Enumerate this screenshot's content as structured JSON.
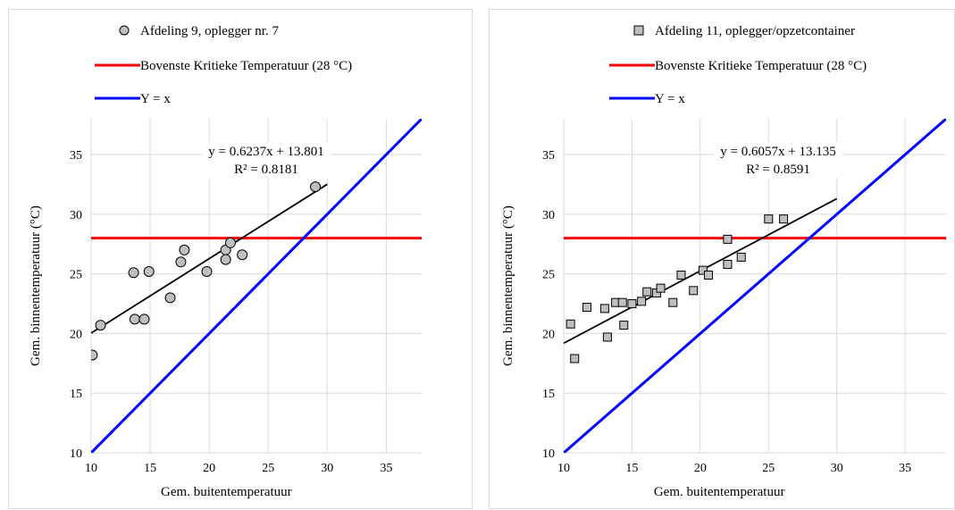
{
  "colors": {
    "gridline": "#d9d9d9",
    "threshold_line": "#ff0000",
    "identity_line": "#0000ff",
    "trend_line": "#000000",
    "marker_fill": "#bfbfbf",
    "marker_stroke": "#000000"
  },
  "chart_data": [
    {
      "type": "scatter",
      "marker": "circle",
      "xlabel": "Gem. buitentemperatuur",
      "ylabel": "Gem. binnentemperatuur  (°C)",
      "xlim": [
        10,
        38
      ],
      "ylim": [
        10,
        38
      ],
      "xticks": [
        10,
        15,
        20,
        25,
        30,
        35
      ],
      "yticks": [
        10,
        15,
        20,
        25,
        30,
        35
      ],
      "grid": true,
      "legend_position": "top",
      "legend": [
        "Afdeling 9, oplegger nr. 7",
        "Bovenste Kritieke Temperatuur (28 °C)",
        "Y = x"
      ],
      "series": [
        {
          "name": "Afdeling 9, oplegger nr. 7",
          "points": [
            [
              10.1,
              18.2
            ],
            [
              10.8,
              20.7
            ],
            [
              13.6,
              25.1
            ],
            [
              13.7,
              21.2
            ],
            [
              14.5,
              21.2
            ],
            [
              14.9,
              25.2
            ],
            [
              16.7,
              23.0
            ],
            [
              17.6,
              26.0
            ],
            [
              17.9,
              27.0
            ],
            [
              19.8,
              25.2
            ],
            [
              21.4,
              27.0
            ],
            [
              21.4,
              26.2
            ],
            [
              21.8,
              27.6
            ],
            [
              22.8,
              26.6
            ],
            [
              29.0,
              32.3
            ]
          ]
        }
      ],
      "threshold": {
        "name": "Bovenste Kritieke Temperatuur (28 °C)",
        "y": 28
      },
      "identity": {
        "name": "Y = x"
      },
      "trendline": {
        "slope": 0.6237,
        "intercept": 13.801,
        "x_range": [
          10,
          30
        ],
        "equation": "y = 0.6237x + 13.801",
        "r2": "R² = 0.8181"
      }
    },
    {
      "type": "scatter",
      "marker": "square",
      "xlabel": "Gem. buitentemperatuur",
      "ylabel": "Gem. binnentemperatuur  (°C)",
      "xlim": [
        10,
        38
      ],
      "ylim": [
        10,
        38
      ],
      "xticks": [
        10,
        15,
        20,
        25,
        30,
        35
      ],
      "yticks": [
        10,
        15,
        20,
        25,
        30,
        35
      ],
      "grid": true,
      "legend_position": "top",
      "legend": [
        "Afdeling 11, oplegger/opzetcontainer",
        "Bovenste Kritieke Temperatuur (28 °C)",
        "Y = x"
      ],
      "series": [
        {
          "name": "Afdeling 11, oplegger/opzetcontainer",
          "points": [
            [
              10.5,
              20.8
            ],
            [
              10.8,
              17.9
            ],
            [
              11.7,
              22.2
            ],
            [
              13.0,
              22.1
            ],
            [
              13.2,
              19.7
            ],
            [
              13.8,
              22.6
            ],
            [
              14.3,
              22.6
            ],
            [
              14.4,
              20.7
            ],
            [
              15.0,
              22.5
            ],
            [
              15.7,
              22.7
            ],
            [
              16.1,
              23.5
            ],
            [
              16.8,
              23.4
            ],
            [
              17.1,
              23.8
            ],
            [
              18.0,
              22.6
            ],
            [
              18.6,
              24.9
            ],
            [
              19.5,
              23.6
            ],
            [
              20.2,
              25.3
            ],
            [
              20.6,
              24.9
            ],
            [
              22.0,
              27.9
            ],
            [
              22.0,
              25.8
            ],
            [
              23.0,
              26.4
            ],
            [
              25.0,
              29.6
            ],
            [
              26.1,
              29.6
            ]
          ]
        }
      ],
      "threshold": {
        "name": "Bovenste Kritieke Temperatuur (28 °C)",
        "y": 28
      },
      "identity": {
        "name": "Y = x"
      },
      "trendline": {
        "slope": 0.6057,
        "intercept": 13.135,
        "x_range": [
          10,
          30
        ],
        "equation": "y = 0.6057x + 13.135",
        "r2": "R² = 0.8591"
      }
    }
  ]
}
